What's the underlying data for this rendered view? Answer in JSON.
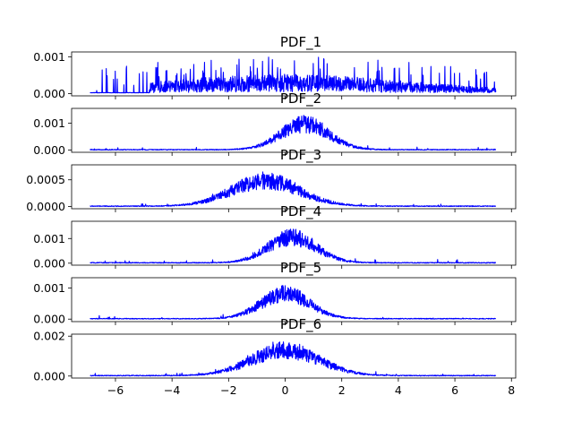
{
  "colors": {
    "line": "#0000ff",
    "frame": "#000000",
    "background": "#ffffff"
  },
  "chart_data": [
    {
      "type": "line",
      "title": "PDF_1",
      "shape": "uniform",
      "xlim": [
        -7.55,
        8.15
      ],
      "ylim": [
        -6e-05,
        0.00113
      ],
      "x_range": [
        -6.9,
        7.45
      ],
      "peak": 0.0011,
      "yticks": [
        0.0,
        0.001
      ],
      "ytick_labels": [
        "0.000",
        "0.001"
      ],
      "show_xtick_labels": false
    },
    {
      "type": "line",
      "title": "PDF_2",
      "shape": "gaussian",
      "mu": 0.7,
      "sigma": 0.85,
      "xlim": [
        -7.55,
        8.15
      ],
      "ylim": [
        -8e-05,
        0.00155
      ],
      "x_range": [
        -6.9,
        7.45
      ],
      "peak": 0.00148,
      "yticks": [
        0.0,
        0.001
      ],
      "ytick_labels": [
        "0.000",
        "0.001"
      ],
      "show_xtick_labels": false
    },
    {
      "type": "line",
      "title": "PDF_3",
      "shape": "gaussian",
      "mu": -0.7,
      "sigma": 1.2,
      "xlim": [
        -7.55,
        8.15
      ],
      "ylim": [
        -4e-05,
        0.00078
      ],
      "x_range": [
        -6.9,
        7.45
      ],
      "peak": 0.00074,
      "yticks": [
        0.0,
        0.0005
      ],
      "ytick_labels": [
        "0.0000",
        "0.0005"
      ],
      "show_xtick_labels": false
    },
    {
      "type": "line",
      "title": "PDF_4",
      "shape": "gaussian",
      "mu": 0.25,
      "sigma": 0.85,
      "xlim": [
        -7.55,
        8.15
      ],
      "ylim": [
        -8e-05,
        0.0017
      ],
      "x_range": [
        -6.9,
        7.45
      ],
      "peak": 0.0016,
      "yticks": [
        0.0,
        0.001
      ],
      "ytick_labels": [
        "0.000",
        "0.001"
      ],
      "show_xtick_labels": false
    },
    {
      "type": "line",
      "title": "PDF_5",
      "shape": "gaussian",
      "mu": 0.0,
      "sigma": 0.85,
      "xlim": [
        -7.55,
        8.15
      ],
      "ylim": [
        -8e-05,
        0.00133
      ],
      "x_range": [
        -6.9,
        7.45
      ],
      "peak": 0.00125,
      "yticks": [
        0.0,
        0.001
      ],
      "ytick_labels": [
        "0.000",
        "0.001"
      ],
      "show_xtick_labels": false
    },
    {
      "type": "line",
      "title": "PDF_6",
      "shape": "gaussian",
      "mu": 0.0,
      "sigma": 1.2,
      "xlim": [
        -7.55,
        8.15
      ],
      "ylim": [
        -0.0001,
        0.0021
      ],
      "x_range": [
        -6.9,
        7.45
      ],
      "peak": 0.00198,
      "yticks": [
        0.0,
        0.002
      ],
      "ytick_labels": [
        "0.000",
        "0.002"
      ],
      "xticks": [
        -6,
        -4,
        -2,
        0,
        2,
        4,
        6,
        8
      ],
      "xtick_labels": [
        "−6",
        "−4",
        "−2",
        "0",
        "2",
        "4",
        "6",
        "8"
      ],
      "show_xtick_labels": true
    }
  ]
}
